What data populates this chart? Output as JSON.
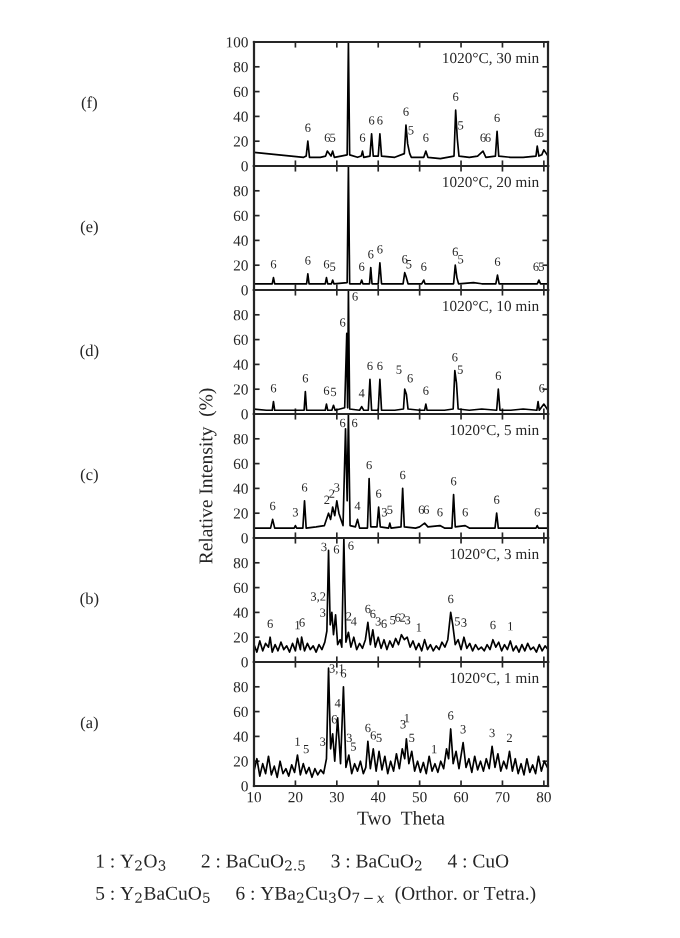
{
  "chart_data": [
    {
      "type": "line",
      "color": "#000000",
      "xlim": [
        10,
        81
      ],
      "ylim": [
        0,
        100
      ],
      "yticks": [
        0,
        20,
        40,
        60,
        80,
        100
      ],
      "xticks": [
        10,
        20,
        30,
        40,
        50,
        60,
        70,
        80
      ],
      "tick_labels": "y",
      "grid": false,
      "x": [
        10,
        13,
        16,
        19,
        22,
        22.6,
        23.0,
        23.4,
        26,
        27.3,
        27.7,
        28.6,
        29.0,
        29.4,
        31,
        32.5,
        32.8,
        33.1,
        35,
        35.9,
        36.2,
        36.5,
        38,
        38.4,
        38.8,
        40.0,
        40.4,
        40.8,
        44,
        46.3,
        46.7,
        47.1,
        47.6,
        48,
        51,
        51.5,
        52,
        55,
        58.3,
        58.7,
        59.1,
        59.5,
        62,
        64,
        65.3,
        66,
        68.3,
        68.7,
        69.1,
        72,
        75,
        78.1,
        78.4,
        78.8,
        79.5,
        80,
        81
      ],
      "values": [
        11,
        10,
        9,
        8,
        7,
        8,
        20,
        7,
        7,
        8,
        12,
        8,
        12,
        7,
        8,
        9,
        100,
        9,
        7,
        8,
        12,
        7,
        8,
        26,
        8,
        8,
        26,
        8,
        7,
        10,
        33,
        18,
        10,
        7,
        7,
        12,
        7,
        6,
        8,
        45,
        22,
        8,
        7,
        8,
        12,
        7,
        8,
        28,
        8,
        7,
        7,
        8,
        16,
        8,
        9,
        13,
        8
      ],
      "annotations": [
        "(f)",
        "1020°C, 30 min",
        {
          "text": "6",
          "x": 23,
          "y": 22
        },
        {
          "text": "6",
          "x": 27.7,
          "y": 14
        },
        {
          "text": "5",
          "x": 29.0,
          "y": 14
        },
        {
          "text": "6",
          "x": 36.2,
          "y": 14
        },
        {
          "text": "6",
          "x": 38.4,
          "y": 28
        },
        {
          "text": "6",
          "x": 40.4,
          "y": 28
        },
        {
          "text": "6",
          "x": 46.7,
          "y": 35
        },
        {
          "text": "5",
          "x": 47.9,
          "y": 20
        },
        {
          "text": "6",
          "x": 51.5,
          "y": 14
        },
        {
          "text": "6",
          "x": 58.7,
          "y": 47
        },
        {
          "text": "5",
          "x": 59.9,
          "y": 24
        },
        {
          "text": "6",
          "x": 65.3,
          "y": 14
        },
        {
          "text": "6",
          "x": 66.5,
          "y": 14
        },
        {
          "text": "6",
          "x": 68.7,
          "y": 30
        },
        {
          "text": "6",
          "x": 78.4,
          "y": 18
        },
        {
          "text": "5",
          "x": 79.3,
          "y": 18
        }
      ]
    },
    {
      "type": "line",
      "color": "#000000",
      "xlim": [
        10,
        81
      ],
      "ylim": [
        0,
        100
      ],
      "yticks": [
        0,
        20,
        40,
        60,
        80
      ],
      "xticks": [
        10,
        20,
        30,
        40,
        50,
        60,
        70,
        80
      ],
      "tick_labels": "y",
      "grid": false,
      "x": [
        10,
        13,
        14.4,
        14.7,
        15,
        19,
        22.7,
        23.0,
        23.3,
        26,
        27.2,
        27.5,
        27.8,
        28.7,
        29.0,
        29.3,
        32.5,
        32.8,
        33.1,
        35.7,
        36.0,
        36.3,
        37.9,
        38.2,
        38.5,
        40.0,
        40.4,
        40.8,
        46.0,
        46.4,
        46.8,
        47.2,
        50.5,
        51.0,
        51.3,
        55,
        58.2,
        58.6,
        59.0,
        59.4,
        63,
        65,
        68.4,
        68.8,
        69.2,
        72,
        75,
        78.4,
        78.8,
        79.2,
        81
      ],
      "values": [
        5,
        5,
        5,
        10,
        5,
        5,
        5,
        13,
        5,
        5,
        5,
        10,
        5,
        5,
        8,
        5,
        6,
        100,
        5,
        5,
        8,
        5,
        5,
        18,
        5,
        5,
        22,
        5,
        5,
        14,
        10,
        5,
        5,
        8,
        5,
        5,
        5,
        20,
        10,
        5,
        6,
        5,
        5,
        12,
        5,
        5,
        5,
        5,
        8,
        5,
        5
      ],
      "annotations": [
        "(e)",
        "1020°C, 20 min",
        {
          "text": "6",
          "x": 14.7,
          "y": 12
        },
        {
          "text": "6",
          "x": 23.0,
          "y": 15
        },
        {
          "text": "6",
          "x": 27.5,
          "y": 12
        },
        {
          "text": "5",
          "x": 29.0,
          "y": 10
        },
        {
          "text": "6",
          "x": 36,
          "y": 10
        },
        {
          "text": "6",
          "x": 38.2,
          "y": 20
        },
        {
          "text": "6",
          "x": 40.4,
          "y": 24
        },
        {
          "text": "6",
          "x": 46.4,
          "y": 16
        },
        {
          "text": "5",
          "x": 47.4,
          "y": 12
        },
        {
          "text": "6",
          "x": 51,
          "y": 10
        },
        {
          "text": "6",
          "x": 58.6,
          "y": 22
        },
        {
          "text": "5",
          "x": 59.9,
          "y": 16
        },
        {
          "text": "6",
          "x": 68.8,
          "y": 14
        },
        {
          "text": "6",
          "x": 78.1,
          "y": 10
        },
        {
          "text": "5",
          "x": 79.4,
          "y": 10
        }
      ]
    },
    {
      "type": "line",
      "color": "#000000",
      "xlim": [
        10,
        81
      ],
      "ylim": [
        0,
        100
      ],
      "yticks": [
        0,
        20,
        40,
        60,
        80
      ],
      "xticks": [
        10,
        20,
        30,
        40,
        50,
        60,
        70,
        80
      ],
      "tick_labels": "y",
      "grid": false,
      "x": [
        10,
        13,
        14.4,
        14.7,
        15,
        19,
        22.1,
        22.4,
        22.7,
        26,
        27.2,
        27.5,
        27.8,
        28.8,
        29.2,
        29.6,
        31.9,
        32.4,
        32.6,
        32.8,
        33.1,
        35.5,
        36,
        36.5,
        37.6,
        38.0,
        38.4,
        40.0,
        40.4,
        40.8,
        44,
        46.1,
        46.4,
        46.8,
        47.2,
        50,
        51.2,
        51.5,
        51.8,
        56,
        58.1,
        58.5,
        58.9,
        59.3,
        62,
        65,
        68.6,
        69,
        69.4,
        72,
        75,
        78.3,
        78.6,
        78.9,
        80,
        81
      ],
      "values": [
        4,
        3,
        3,
        10,
        3,
        3,
        3,
        18,
        3,
        3,
        3,
        8,
        3,
        3,
        7,
        3,
        5,
        65,
        5,
        100,
        4,
        3,
        6,
        3,
        3,
        28,
        3,
        3,
        28,
        3,
        3,
        4,
        20,
        16,
        4,
        3,
        3,
        8,
        3,
        3,
        4,
        35,
        25,
        4,
        3,
        4,
        3,
        20,
        3,
        3,
        4,
        3,
        10,
        3,
        8,
        3
      ],
      "annotations": [
        "(d)",
        "1020°C, 10 min",
        {
          "text": "6",
          "x": 14.7,
          "y": 12
        },
        {
          "text": "6",
          "x": 22.4,
          "y": 20
        },
        {
          "text": "6",
          "x": 27.5,
          "y": 10
        },
        {
          "text": "5",
          "x": 29.2,
          "y": 9
        },
        {
          "text": "6",
          "x": 31.4,
          "y": 65
        },
        {
          "text": "6",
          "x": 34.4,
          "y": 86
        },
        {
          "text": "4",
          "x": 36,
          "y": 8
        },
        {
          "text": "6",
          "x": 38,
          "y": 30
        },
        {
          "text": "6",
          "x": 40.4,
          "y": 30
        },
        {
          "text": "5",
          "x": 45.0,
          "y": 27
        },
        {
          "text": "6",
          "x": 47.7,
          "y": 20
        },
        {
          "text": "6",
          "x": 51.5,
          "y": 10
        },
        {
          "text": "6",
          "x": 58.5,
          "y": 37
        },
        {
          "text": "5",
          "x": 59.8,
          "y": 27
        },
        {
          "text": "6",
          "x": 69,
          "y": 22
        },
        {
          "text": "6",
          "x": 79.5,
          "y": 12
        }
      ]
    },
    {
      "type": "line",
      "color": "#000000",
      "xlim": [
        10,
        81
      ],
      "ylim": [
        0,
        100
      ],
      "yticks": [
        0,
        20,
        40,
        60,
        80
      ],
      "xticks": [
        10,
        20,
        30,
        40,
        50,
        60,
        70,
        80
      ],
      "tick_labels": "y",
      "grid": false,
      "ylabel": "Relative Intensity  (%)",
      "x": [
        10,
        12,
        14,
        14.5,
        15,
        18,
        19.7,
        20,
        20.3,
        21.8,
        22.2,
        22.6,
        25,
        27,
        28,
        28.5,
        29,
        29.5,
        30,
        30.5,
        31,
        31.5,
        32.1,
        32.5,
        32.8,
        33.2,
        34.5,
        35,
        35.5,
        37.4,
        37.8,
        38.2,
        39.7,
        40.1,
        40.5,
        42.5,
        42.8,
        43.1,
        45.5,
        45.9,
        46.3,
        49,
        50,
        51.2,
        52,
        54.9,
        56,
        57.8,
        58.2,
        58.6,
        61,
        62,
        68.2,
        68.6,
        69,
        72,
        75,
        78.1,
        78.4,
        78.7,
        81
      ],
      "values": [
        8,
        8,
        8,
        15,
        8,
        8,
        8,
        10,
        8,
        8,
        30,
        8,
        9,
        10,
        20,
        15,
        25,
        18,
        30,
        20,
        15,
        10,
        88,
        30,
        100,
        10,
        9,
        15,
        8,
        8,
        48,
        9,
        9,
        25,
        9,
        8,
        12,
        8,
        9,
        40,
        9,
        8,
        9,
        12,
        9,
        10,
        8,
        8,
        35,
        9,
        10,
        8,
        8,
        20,
        8,
        8,
        8,
        8,
        10,
        8,
        8
      ],
      "annotations": [
        "(c)",
        "1020°C, 5 min",
        {
          "text": "6",
          "x": 14.5,
          "y": 17
        },
        {
          "text": "3",
          "x": 20,
          "y": 12
        },
        {
          "text": "6",
          "x": 22.2,
          "y": 32
        },
        {
          "text": "2",
          "x": 27.6,
          "y": 22
        },
        {
          "text": "2",
          "x": 28.8,
          "y": 27
        },
        {
          "text": "3",
          "x": 30,
          "y": 32
        },
        {
          "text": "6",
          "x": 31.4,
          "y": 84
        },
        {
          "text": "6",
          "x": 34.3,
          "y": 84
        },
        {
          "text": "4",
          "x": 35,
          "y": 17
        },
        {
          "text": "6",
          "x": 37.8,
          "y": 50
        },
        {
          "text": "6",
          "x": 40.1,
          "y": 27
        },
        {
          "text": "3",
          "x": 41.5,
          "y": 12
        },
        {
          "text": "5",
          "x": 42.8,
          "y": 14
        },
        {
          "text": "6",
          "x": 45.9,
          "y": 42
        },
        {
          "text": "6",
          "x": 50.4,
          "y": 14
        },
        {
          "text": "6",
          "x": 51.6,
          "y": 14
        },
        {
          "text": "6",
          "x": 54.9,
          "y": 12
        },
        {
          "text": "6",
          "x": 58.2,
          "y": 37
        },
        {
          "text": "6",
          "x": 61,
          "y": 12
        },
        {
          "text": "6",
          "x": 68.6,
          "y": 22
        },
        {
          "text": "6",
          "x": 78.4,
          "y": 12
        }
      ]
    },
    {
      "type": "line",
      "color": "#000000",
      "xlim": [
        10,
        81
      ],
      "ylim": [
        0,
        100
      ],
      "yticks": [
        0,
        20,
        40,
        60,
        80
      ],
      "xticks": [
        10,
        20,
        30,
        40,
        50,
        60,
        70,
        80
      ],
      "tick_labels": "y",
      "grid": false,
      "x": [
        10,
        10.7,
        11.4,
        12.1,
        12.8,
        13.5,
        13.9,
        14.4,
        15.1,
        15.8,
        16.5,
        17.2,
        17.9,
        18.6,
        19.3,
        20,
        20.5,
        21.2,
        21.5,
        22.2,
        22.9,
        23.6,
        24.3,
        25,
        25.7,
        26.4,
        27.1,
        27.6,
        28.0,
        28.4,
        28.8,
        29.2,
        29.7,
        30.2,
        30.8,
        31.2,
        31.7,
        32.2,
        32.8,
        33.4,
        34.1,
        34.8,
        35.5,
        36.2,
        36.9,
        37.5,
        38.1,
        38.7,
        39.3,
        40,
        40.7,
        41.4,
        42.1,
        42.8,
        43.5,
        44.2,
        44.9,
        45.6,
        46.3,
        47,
        47.7,
        48.4,
        49.1,
        49.8,
        50.5,
        51.2,
        51.9,
        52.6,
        53.3,
        54,
        54.7,
        55.4,
        56.1,
        56.8,
        57.5,
        58,
        58.6,
        59.3,
        60,
        60.7,
        61.4,
        62.1,
        62.8,
        63.5,
        64.2,
        64.9,
        65.6,
        66.3,
        67,
        67.7,
        68.4,
        69.1,
        69.8,
        70.5,
        71.2,
        71.9,
        72.6,
        73.3,
        74,
        74.7,
        75.4,
        76.1,
        76.8,
        77.5,
        78.2,
        78.9,
        79.6,
        80.3,
        81
      ],
      "values": [
        14,
        8,
        17,
        9,
        15,
        12,
        20,
        8,
        14,
        9,
        16,
        10,
        13,
        8,
        15,
        9,
        19,
        10,
        20,
        9,
        15,
        10,
        13,
        8,
        14,
        10,
        16,
        25,
        90,
        30,
        40,
        22,
        38,
        14,
        18,
        12,
        100,
        16,
        24,
        12,
        20,
        10,
        15,
        11,
        18,
        32,
        14,
        26,
        12,
        20,
        11,
        18,
        10,
        17,
        12,
        19,
        14,
        22,
        18,
        20,
        12,
        17,
        10,
        15,
        9,
        18,
        10,
        14,
        9,
        13,
        10,
        16,
        12,
        18,
        40,
        30,
        14,
        18,
        10,
        20,
        11,
        15,
        9,
        14,
        10,
        12,
        9,
        14,
        10,
        18,
        12,
        16,
        9,
        14,
        10,
        17,
        9,
        13,
        8,
        14,
        9,
        15,
        10,
        12,
        8,
        14,
        9,
        13,
        10
      ],
      "annotations": [
        "(b)",
        "1020°C, 3 min",
        {
          "text": "6",
          "x": 13.9,
          "y": 22
        },
        {
          "text": "1",
          "x": 20.5,
          "y": 21
        },
        {
          "text": "6",
          "x": 21.6,
          "y": 23
        },
        {
          "text": "3",
          "x": 26.6,
          "y": 31
        },
        {
          "text": "3",
          "x": 26.9,
          "y": 84
        },
        {
          "text": "6",
          "x": 29.9,
          "y": 82
        },
        {
          "text": "3,2",
          "x": 25.5,
          "y": 44
        },
        {
          "text": "6",
          "x": 33.4,
          "y": 85
        },
        {
          "text": "2",
          "x": 32.9,
          "y": 28
        },
        {
          "text": "4",
          "x": 34.1,
          "y": 24
        },
        {
          "text": "6",
          "x": 37.5,
          "y": 34
        },
        {
          "text": "6",
          "x": 38.7,
          "y": 30
        },
        {
          "text": "3",
          "x": 40,
          "y": 24
        },
        {
          "text": "6",
          "x": 41.4,
          "y": 22
        },
        {
          "text": "5",
          "x": 43.5,
          "y": 25
        },
        {
          "text": "6",
          "x": 44.7,
          "y": 27
        },
        {
          "text": "2",
          "x": 45.9,
          "y": 27
        },
        {
          "text": "3",
          "x": 47.1,
          "y": 25
        },
        {
          "text": "1",
          "x": 49.8,
          "y": 19
        },
        {
          "text": "6",
          "x": 57.5,
          "y": 42
        },
        {
          "text": "5",
          "x": 59.1,
          "y": 24
        },
        {
          "text": "3",
          "x": 60.7,
          "y": 23
        },
        {
          "text": "6",
          "x": 67.7,
          "y": 21
        },
        {
          "text": "1",
          "x": 71.9,
          "y": 20
        }
      ]
    },
    {
      "type": "line",
      "color": "#000000",
      "xlim": [
        10,
        81
      ],
      "ylim": [
        0,
        100
      ],
      "yticks": [
        0,
        20,
        40,
        60,
        80
      ],
      "xticks": [
        10,
        20,
        30,
        40,
        50,
        60,
        70,
        80
      ],
      "grid": false,
      "xlabel": "Two  Theta",
      "x": [
        10,
        10.7,
        11.4,
        12.1,
        12.8,
        13.5,
        14.2,
        14.9,
        15.6,
        16.3,
        17,
        17.7,
        18.4,
        19.1,
        19.8,
        20.5,
        21.2,
        21.9,
        22.6,
        23.3,
        24,
        24.7,
        25.4,
        26.1,
        26.8,
        27.5,
        28.0,
        28.5,
        29.0,
        29.5,
        30.2,
        30.9,
        31.6,
        32.2,
        32.9,
        33.6,
        34.3,
        35,
        35.7,
        36.4,
        37.0,
        37.5,
        38.1,
        38.8,
        39.5,
        40.2,
        40.9,
        41.6,
        42.3,
        43,
        43.7,
        44.4,
        45.1,
        45.8,
        46.4,
        46.8,
        47.4,
        48.1,
        48.8,
        49.5,
        50.2,
        50.9,
        51.6,
        52.3,
        53,
        53.7,
        54.4,
        55.1,
        55.8,
        56.5,
        57.0,
        57.5,
        58.1,
        58.8,
        59.5,
        60.5,
        61.2,
        61.9,
        62.6,
        63.3,
        64,
        64.7,
        65.4,
        66.1,
        66.8,
        67.5,
        68.2,
        68.9,
        69.6,
        70.3,
        71,
        71.7,
        72.4,
        73.1,
        73.8,
        74.5,
        75.2,
        75.9,
        76.6,
        77.3,
        78,
        78.7,
        79.4,
        80.1,
        81
      ],
      "values": [
        12,
        22,
        8,
        18,
        10,
        24,
        9,
        16,
        7,
        20,
        10,
        14,
        8,
        17,
        11,
        25,
        9,
        18,
        10,
        15,
        7,
        14,
        9,
        13,
        10,
        22,
        95,
        30,
        42,
        20,
        55,
        18,
        80,
        15,
        25,
        10,
        18,
        12,
        20,
        10,
        15,
        36,
        14,
        30,
        12,
        28,
        13,
        24,
        10,
        20,
        12,
        26,
        14,
        30,
        22,
        38,
        18,
        28,
        12,
        20,
        11,
        19,
        10,
        24,
        12,
        18,
        11,
        20,
        14,
        30,
        22,
        46,
        18,
        28,
        14,
        35,
        15,
        22,
        11,
        24,
        13,
        20,
        12,
        22,
        14,
        32,
        15,
        26,
        12,
        20,
        14,
        28,
        12,
        22,
        10,
        18,
        9,
        22,
        11,
        17,
        10,
        24,
        12,
        20,
        14
      ],
      "annotations": [
        "(a)",
        "1020°C, 1 min",
        {
          "text": "1",
          "x": 20.5,
          "y": 27
        },
        {
          "text": "5",
          "x": 22.6,
          "y": 21
        },
        {
          "text": "3",
          "x": 26.6,
          "y": 27
        },
        {
          "text": "3,1",
          "x": 30.0,
          "y": 86
        },
        {
          "text": "6",
          "x": 29.4,
          "y": 45
        },
        {
          "text": "4",
          "x": 30.2,
          "y": 58
        },
        {
          "text": "6",
          "x": 31.6,
          "y": 82
        },
        {
          "text": "3",
          "x": 33.0,
          "y": 30
        },
        {
          "text": "5",
          "x": 34.0,
          "y": 23
        },
        {
          "text": "6",
          "x": 37.5,
          "y": 38
        },
        {
          "text": "6",
          "x": 38.8,
          "y": 32
        },
        {
          "text": "5",
          "x": 40.2,
          "y": 30
        },
        {
          "text": "3",
          "x": 46.0,
          "y": 41
        },
        {
          "text": "1",
          "x": 46.9,
          "y": 46
        },
        {
          "text": "5",
          "x": 48.1,
          "y": 30
        },
        {
          "text": "1",
          "x": 53.5,
          "y": 21
        },
        {
          "text": "6",
          "x": 57.5,
          "y": 48
        },
        {
          "text": "3",
          "x": 60.5,
          "y": 37
        },
        {
          "text": "3",
          "x": 67.5,
          "y": 34
        },
        {
          "text": "2",
          "x": 71.7,
          "y": 30
        },
        "1 : Y$_{2}$O$_{3}$       2 : BaCuO$_{2.5}$     3 : BaCuO$_{2}$     4 : CuO",
        "5 : Y$_{2}$BaCuO$_{5}$     6 : YBa$_{2}$Cu$_{3}$O$_{7−x}$  (Orthor. or Tetra.)"
      ]
    }
  ]
}
